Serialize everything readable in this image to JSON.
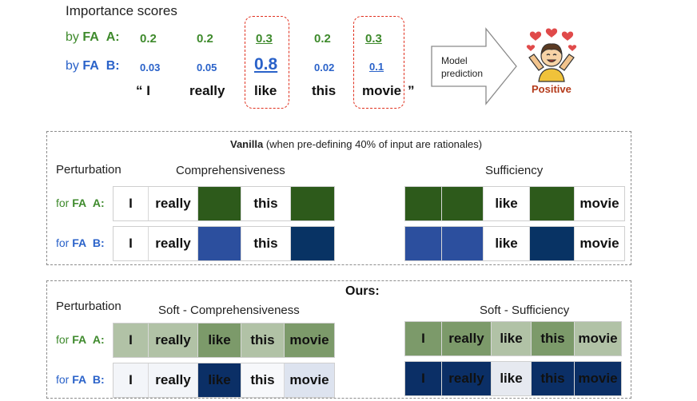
{
  "header": {
    "title": "Importance scores",
    "fa_a_label_prefix": "by ",
    "fa_label": "FA",
    "a_label": "A:",
    "b_label": "B:",
    "fa_a_scores": [
      "0.2",
      "0.2",
      "0.3",
      "0.2",
      "0.3"
    ],
    "fa_b_scores": [
      "0.03",
      "0.05",
      "0.8",
      "0.02",
      "0.1"
    ],
    "open_quote": "“ I",
    "words": [
      "really",
      "like",
      "this",
      "movie"
    ],
    "close_quote": "”",
    "model_prediction": [
      "Model",
      "prediction"
    ],
    "prediction_label": "Positive"
  },
  "vanilla": {
    "title_bold": "Vanilla",
    "title_rest": " (when pre-defining 40% of input are rationales)",
    "perturbation_label": "Perturbation",
    "comp_title": "Comprehensiveness",
    "suff_title": "Sufficiency",
    "row_a_label": {
      "prefix": "for ",
      "fa": "FA",
      "name": "A:"
    },
    "row_b_label": {
      "prefix": "for ",
      "fa": "FA",
      "name": "B:"
    },
    "comp_a": [
      "I",
      "really",
      "",
      "this",
      ""
    ],
    "comp_b": [
      "I",
      "really",
      "",
      "this",
      ""
    ],
    "suff_a": [
      "",
      "",
      "like",
      "",
      "movie"
    ],
    "suff_b": [
      "",
      "",
      "like",
      "",
      "movie"
    ]
  },
  "ours": {
    "title": "Ours:",
    "perturbation_label": "Perturbation",
    "comp_title": "Soft - Comprehensiveness",
    "suff_title": "Soft - Sufficiency",
    "row_a_label": {
      "prefix": "for ",
      "fa": "FA",
      "name": "A:"
    },
    "row_b_label": {
      "prefix": "for ",
      "fa": "FA",
      "name": "B:"
    },
    "comp_a": [
      "I",
      "really",
      "like",
      "this",
      "movie"
    ],
    "comp_b": [
      "I",
      "really",
      "like",
      "this",
      "movie"
    ],
    "suff_a": [
      "I",
      "really",
      "like",
      "this",
      "movie"
    ],
    "suff_b": [
      "I",
      "really",
      "like",
      "this",
      "movie"
    ]
  },
  "colors": {
    "fa_a_text": "#3e8a2c",
    "fa_b_text": "#2a62c9",
    "green_dark": "#2d5a1b",
    "blue_mid": "#2c4f9e",
    "blue_dark": "#083364",
    "highlight_box": "#e0301e",
    "positive": "#b43a1a"
  },
  "icons": [
    "happy-person-icon",
    "heart-icon",
    "arrow-right-icon"
  ]
}
